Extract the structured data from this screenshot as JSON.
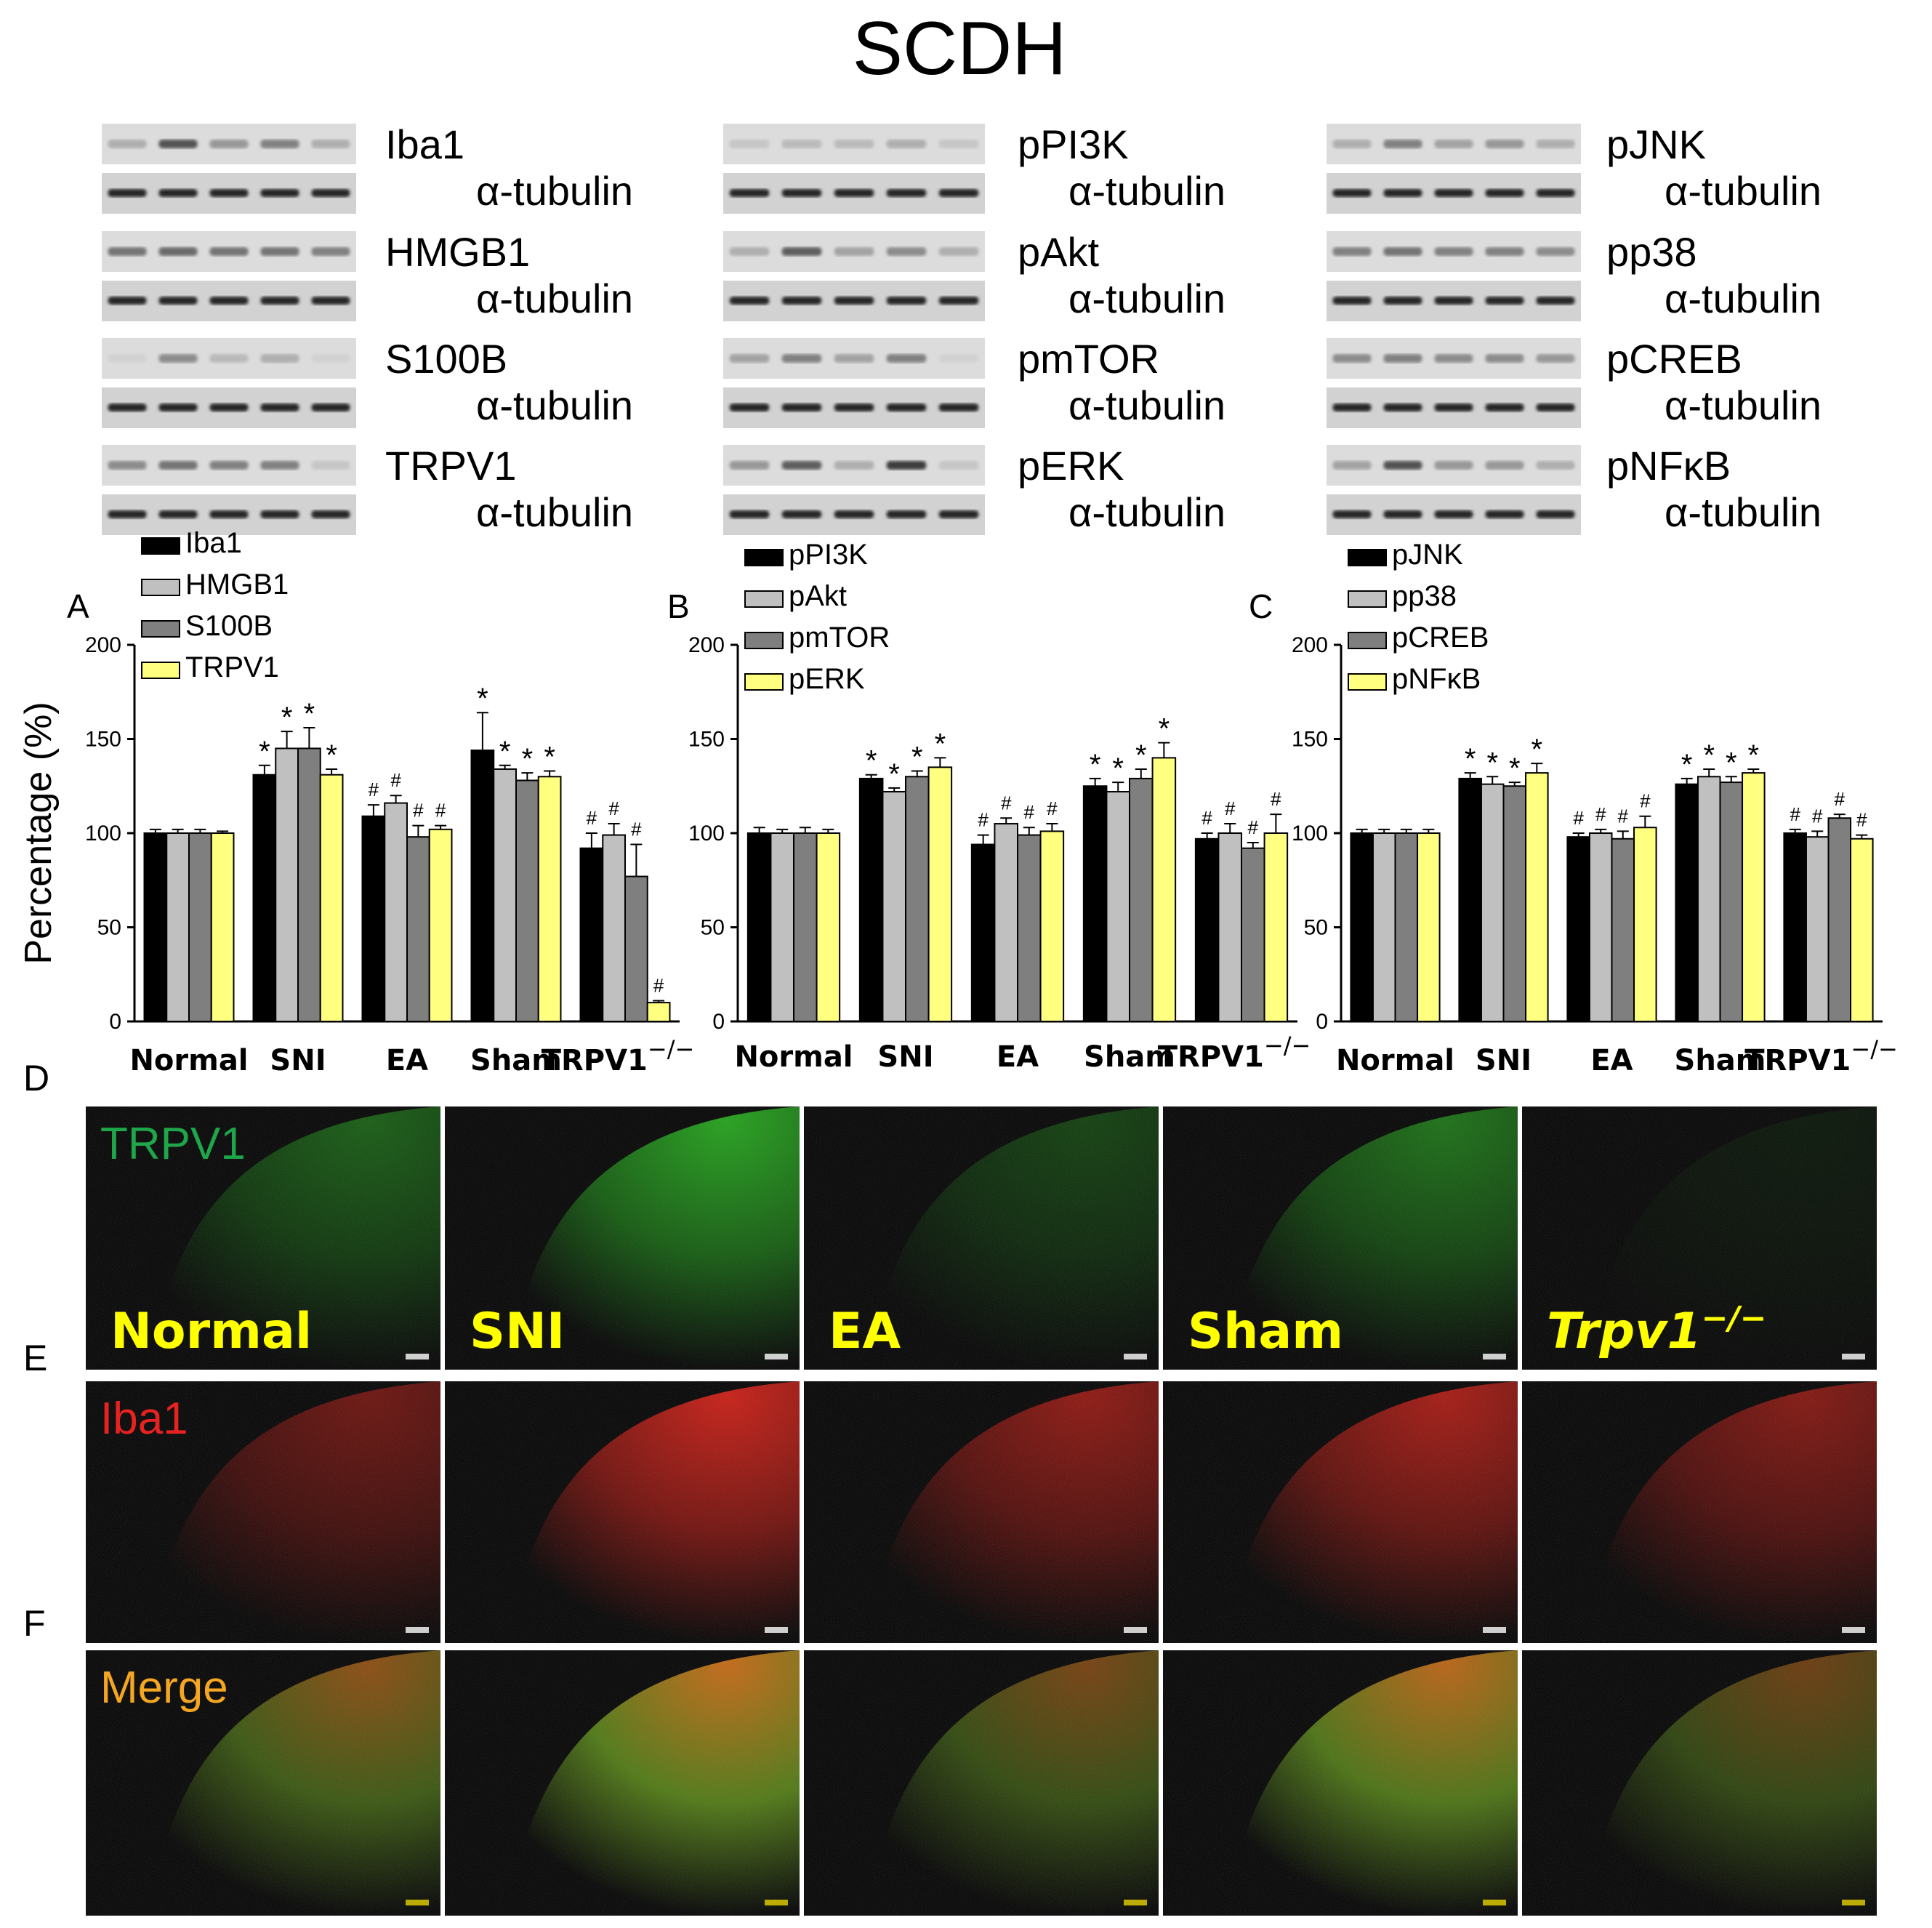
{
  "figure_title": "SCDH",
  "blots": {
    "A": [
      {
        "label": "Iba1",
        "tubulin": "α-tubulin",
        "marker_intensity": [
          0.35,
          0.75,
          0.45,
          0.55,
          0.35
        ]
      },
      {
        "label": "HMGB1",
        "tubulin": "α-tubulin",
        "marker_intensity": [
          0.6,
          0.65,
          0.6,
          0.6,
          0.55
        ]
      },
      {
        "label": "S100B",
        "tubulin": "α-tubulin",
        "marker_intensity": [
          0.2,
          0.5,
          0.3,
          0.35,
          0.2
        ]
      },
      {
        "label": "TRPV1",
        "tubulin": "α-tubulin",
        "marker_intensity": [
          0.5,
          0.6,
          0.55,
          0.55,
          0.25
        ]
      }
    ],
    "B": [
      {
        "label": "pPI3K",
        "tubulin": "α-tubulin",
        "marker_intensity": [
          0.25,
          0.3,
          0.3,
          0.35,
          0.25
        ]
      },
      {
        "label": "pAkt",
        "tubulin": "α-tubulin",
        "marker_intensity": [
          0.35,
          0.7,
          0.4,
          0.5,
          0.35
        ]
      },
      {
        "label": "pmTOR",
        "tubulin": "α-tubulin",
        "marker_intensity": [
          0.4,
          0.55,
          0.4,
          0.55,
          0.2
        ]
      },
      {
        "label": "pERK",
        "tubulin": "α-tubulin",
        "marker_intensity": [
          0.45,
          0.7,
          0.35,
          0.85,
          0.25
        ]
      }
    ],
    "C": [
      {
        "label": "pJNK",
        "tubulin": "α-tubulin",
        "marker_intensity": [
          0.35,
          0.55,
          0.4,
          0.45,
          0.35
        ]
      },
      {
        "label": "pp38",
        "tubulin": "α-tubulin",
        "marker_intensity": [
          0.55,
          0.6,
          0.55,
          0.55,
          0.5
        ]
      },
      {
        "label": "pCREB",
        "tubulin": "α-tubulin",
        "marker_intensity": [
          0.5,
          0.55,
          0.5,
          0.5,
          0.45
        ]
      },
      {
        "label": "pNFκB",
        "tubulin": "α-tubulin",
        "marker_intensity": [
          0.4,
          0.75,
          0.45,
          0.45,
          0.35
        ]
      }
    ]
  },
  "chart_data": [
    {
      "type": "bar",
      "panel": "A",
      "ylabel": "Percentage (%)",
      "ylim": [
        0,
        200
      ],
      "yticks": [
        "0",
        "50",
        "100",
        "150",
        "200"
      ],
      "categories": [
        "Normal",
        "SNI",
        "EA",
        "Sham",
        "TRPV1"
      ],
      "category_superscript": "−/−",
      "series": [
        {
          "name": "Iba1",
          "color": "#000000",
          "values": [
            100,
            131,
            109,
            144,
            92
          ],
          "errors": [
            2,
            5,
            6,
            20,
            8
          ],
          "marks": [
            "",
            "*",
            "#",
            "*",
            "#"
          ]
        },
        {
          "name": "HMGB1",
          "color": "#c0c0c0",
          "values": [
            100,
            145,
            116,
            134,
            99
          ],
          "errors": [
            2,
            9,
            4,
            2,
            6
          ],
          "marks": [
            "",
            "*",
            "#",
            "*",
            "#"
          ]
        },
        {
          "name": "S100B",
          "color": "#7f7f7f",
          "values": [
            100,
            145,
            98,
            128,
            77
          ],
          "errors": [
            2,
            11,
            6,
            4,
            17
          ],
          "marks": [
            "",
            "*",
            "#",
            "*",
            "#"
          ]
        },
        {
          "name": "TRPV1",
          "color": "#ffff80",
          "values": [
            100,
            131,
            102,
            130,
            10
          ],
          "errors": [
            1,
            3,
            2,
            3,
            1
          ],
          "marks": [
            "",
            "*",
            "#",
            "*",
            "#"
          ]
        }
      ]
    },
    {
      "type": "bar",
      "panel": "B",
      "ylim": [
        0,
        200
      ],
      "yticks": [
        "0",
        "50",
        "100",
        "150",
        "200"
      ],
      "categories": [
        "Normal",
        "SNI",
        "EA",
        "Sham",
        "TRPV1"
      ],
      "category_superscript": "−/−",
      "series": [
        {
          "name": "pPI3K",
          "color": "#000000",
          "values": [
            100,
            129,
            94,
            125,
            97
          ],
          "errors": [
            3,
            2,
            5,
            4,
            3
          ],
          "marks": [
            "",
            "*",
            "#",
            "*",
            "#"
          ]
        },
        {
          "name": "pAkt",
          "color": "#c0c0c0",
          "values": [
            100,
            122,
            105,
            122,
            100
          ],
          "errors": [
            2,
            2,
            3,
            5,
            5
          ],
          "marks": [
            "",
            "*",
            "#",
            "*",
            "#"
          ]
        },
        {
          "name": "pmTOR",
          "color": "#7f7f7f",
          "values": [
            100,
            130,
            99,
            129,
            92
          ],
          "errors": [
            3,
            3,
            4,
            5,
            3
          ],
          "marks": [
            "",
            "*",
            "#",
            "*",
            "#"
          ]
        },
        {
          "name": "pERK",
          "color": "#ffff80",
          "values": [
            100,
            135,
            101,
            140,
            100
          ],
          "errors": [
            2,
            5,
            4,
            8,
            10
          ],
          "marks": [
            "",
            "*",
            "#",
            "*",
            "#"
          ]
        }
      ]
    },
    {
      "type": "bar",
      "panel": "C",
      "ylim": [
        0,
        200
      ],
      "yticks": [
        "0",
        "50",
        "100",
        "150",
        "200"
      ],
      "categories": [
        "Normal",
        "SNI",
        "EA",
        "Sham",
        "TRPV1"
      ],
      "category_superscript": "−/−",
      "series": [
        {
          "name": "pJNK",
          "color": "#000000",
          "values": [
            100,
            129,
            98,
            126,
            100
          ],
          "errors": [
            2,
            3,
            2,
            3,
            2
          ],
          "marks": [
            "",
            "*",
            "#",
            "*",
            "#"
          ]
        },
        {
          "name": "pp38",
          "color": "#c0c0c0",
          "values": [
            100,
            126,
            100,
            130,
            98
          ],
          "errors": [
            2,
            4,
            2,
            4,
            3
          ],
          "marks": [
            "",
            "*",
            "#",
            "*",
            "#"
          ]
        },
        {
          "name": "pCREB",
          "color": "#7f7f7f",
          "values": [
            100,
            125,
            97,
            127,
            108
          ],
          "errors": [
            2,
            2,
            4,
            3,
            2
          ],
          "marks": [
            "",
            "*",
            "#",
            "*",
            "#"
          ]
        },
        {
          "name": "pNFκB",
          "color": "#ffff80",
          "values": [
            100,
            132,
            103,
            132,
            97
          ],
          "errors": [
            2,
            5,
            6,
            2,
            2
          ],
          "marks": [
            "",
            "*",
            "#",
            "*",
            "#"
          ]
        }
      ]
    }
  ],
  "micrographs": {
    "row_labels": [
      "D",
      "E",
      "F"
    ],
    "rows": [
      {
        "stain": "TRPV1",
        "stain_color": "#1fa64a",
        "channel": "green",
        "brightness": [
          0.45,
          0.8,
          0.3,
          0.55,
          0.08
        ]
      },
      {
        "stain": "Iba1",
        "stain_color": "#e8231f",
        "channel": "red",
        "brightness": [
          0.45,
          0.85,
          0.6,
          0.7,
          0.55
        ]
      },
      {
        "stain": "Merge",
        "stain_color": "#f5a623",
        "channel": "merge",
        "brightness": [
          0.6,
          0.85,
          0.5,
          0.8,
          0.45
        ]
      }
    ],
    "group_labels": [
      "Normal",
      "SNI",
      "EA",
      "Sham",
      "Trpv1"
    ],
    "group_label_superscript": "−/−",
    "group_label_color": "#ffff00"
  }
}
